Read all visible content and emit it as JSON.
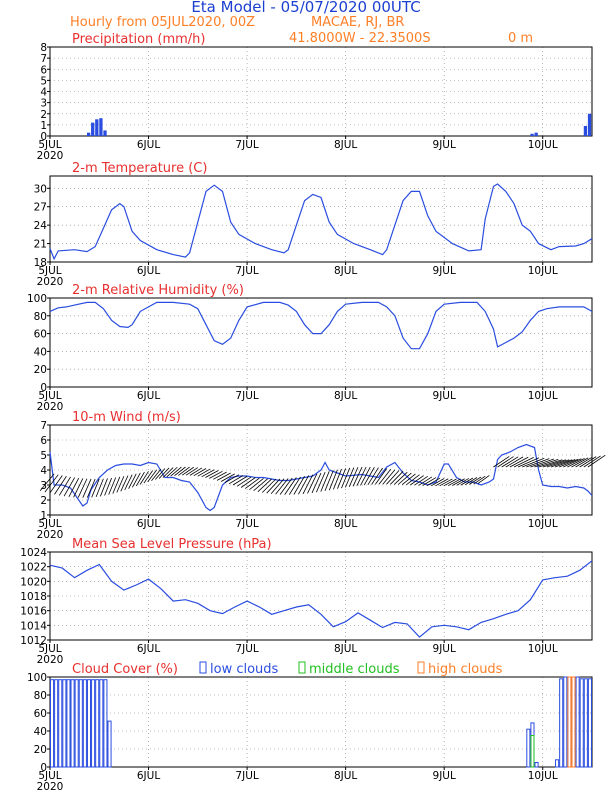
{
  "header": {
    "title": "Eta Model - 05/07/2020 00UTC",
    "subtitle": "Hourly from 05JUL2020, 00Z",
    "location": "MACAE, RJ, BR",
    "coords": "41.8000W - 22.3500S",
    "elevation": "0 m"
  },
  "colors": {
    "title": "#1a3fd1",
    "orange": "#ff7f27",
    "red": "#e83030",
    "blue": "#2a4de0",
    "green": "#22c022",
    "frame": "#000000",
    "grid": "#888888"
  },
  "x_axis": {
    "range": [
      0,
      132
    ],
    "ticks": [
      {
        "hour": 0,
        "label": "5JUL",
        "year": "2020"
      },
      {
        "hour": 24,
        "label": "6JUL"
      },
      {
        "hour": 48,
        "label": "7JUL"
      },
      {
        "hour": 72,
        "label": "8JUL"
      },
      {
        "hour": 96,
        "label": "9JUL"
      },
      {
        "hour": 120,
        "label": "10JUL"
      }
    ]
  },
  "chart_data": [
    {
      "type": "bar",
      "title": "Precipitation (mm/h)",
      "ylim": [
        0,
        8
      ],
      "yticks": [
        0,
        1,
        2,
        3,
        4,
        5,
        6,
        7,
        8
      ],
      "bars": [
        [
          9,
          0.3
        ],
        [
          10,
          1.2
        ],
        [
          11,
          1.5
        ],
        [
          12,
          1.6
        ],
        [
          13,
          0.5
        ],
        [
          117,
          0.2
        ],
        [
          118,
          0.3
        ],
        [
          130,
          0.9
        ],
        [
          131,
          2.0
        ]
      ]
    },
    {
      "type": "line",
      "title": "2-m Temperature (C)",
      "ylim": [
        18,
        32
      ],
      "yticks": [
        18,
        21,
        24,
        27,
        30
      ],
      "points": [
        [
          0,
          20.2
        ],
        [
          1,
          18.5
        ],
        [
          2,
          19.8
        ],
        [
          6,
          20.0
        ],
        [
          9,
          19.7
        ],
        [
          11,
          20.5
        ],
        [
          13,
          23.5
        ],
        [
          15,
          26.5
        ],
        [
          17,
          27.5
        ],
        [
          18,
          27.0
        ],
        [
          20,
          23.0
        ],
        [
          22,
          21.5
        ],
        [
          26,
          20.0
        ],
        [
          30,
          19.2
        ],
        [
          33,
          18.8
        ],
        [
          34,
          19.5
        ],
        [
          36,
          24.5
        ],
        [
          38,
          29.5
        ],
        [
          40,
          30.5
        ],
        [
          42,
          29.5
        ],
        [
          44,
          24.5
        ],
        [
          46,
          22.5
        ],
        [
          50,
          21.0
        ],
        [
          54,
          20.0
        ],
        [
          57,
          19.5
        ],
        [
          58,
          20.0
        ],
        [
          60,
          24.0
        ],
        [
          62,
          28.0
        ],
        [
          64,
          29.0
        ],
        [
          66,
          28.5
        ],
        [
          68,
          24.5
        ],
        [
          70,
          22.5
        ],
        [
          74,
          21.0
        ],
        [
          78,
          20.0
        ],
        [
          81,
          19.2
        ],
        [
          82,
          20.0
        ],
        [
          84,
          24.0
        ],
        [
          86,
          28.0
        ],
        [
          88,
          29.5
        ],
        [
          90,
          29.5
        ],
        [
          92,
          25.5
        ],
        [
          94,
          23.0
        ],
        [
          98,
          21.0
        ],
        [
          102,
          19.8
        ],
        [
          105,
          20.0
        ],
        [
          106,
          25.0
        ],
        [
          108,
          30.3
        ],
        [
          109,
          30.7
        ],
        [
          111,
          29.5
        ],
        [
          113,
          27.5
        ],
        [
          115,
          24.0
        ],
        [
          117,
          23.0
        ],
        [
          119,
          21.0
        ],
        [
          122,
          20.0
        ],
        [
          124,
          20.5
        ],
        [
          128,
          20.6
        ],
        [
          130,
          21.0
        ],
        [
          132,
          21.8
        ]
      ]
    },
    {
      "type": "line",
      "title": "2-m Relative Humidity (%)",
      "ylim": [
        0,
        100
      ],
      "yticks": [
        0,
        20,
        40,
        60,
        80,
        100
      ],
      "points": [
        [
          0,
          85
        ],
        [
          2,
          89
        ],
        [
          4,
          90
        ],
        [
          6,
          92
        ],
        [
          9,
          95
        ],
        [
          11,
          95
        ],
        [
          13,
          88
        ],
        [
          15,
          75
        ],
        [
          17,
          68
        ],
        [
          19,
          67
        ],
        [
          20,
          70
        ],
        [
          22,
          85
        ],
        [
          26,
          95
        ],
        [
          30,
          95
        ],
        [
          34,
          93
        ],
        [
          36,
          88
        ],
        [
          38,
          70
        ],
        [
          40,
          52
        ],
        [
          42,
          48
        ],
        [
          44,
          55
        ],
        [
          46,
          75
        ],
        [
          48,
          90
        ],
        [
          52,
          95
        ],
        [
          56,
          95
        ],
        [
          58,
          92
        ],
        [
          60,
          85
        ],
        [
          62,
          70
        ],
        [
          64,
          60
        ],
        [
          66,
          60
        ],
        [
          68,
          70
        ],
        [
          70,
          85
        ],
        [
          72,
          93
        ],
        [
          76,
          95
        ],
        [
          80,
          95
        ],
        [
          82,
          90
        ],
        [
          84,
          80
        ],
        [
          86,
          55
        ],
        [
          88,
          43
        ],
        [
          90,
          43
        ],
        [
          92,
          60
        ],
        [
          94,
          85
        ],
        [
          96,
          93
        ],
        [
          100,
          95
        ],
        [
          104,
          95
        ],
        [
          106,
          85
        ],
        [
          108,
          65
        ],
        [
          109,
          45
        ],
        [
          111,
          50
        ],
        [
          113,
          55
        ],
        [
          115,
          62
        ],
        [
          117,
          75
        ],
        [
          119,
          85
        ],
        [
          121,
          88
        ],
        [
          124,
          90
        ],
        [
          128,
          90
        ],
        [
          130,
          90
        ],
        [
          132,
          85
        ]
      ]
    },
    {
      "type": "line",
      "title": "10-m Wind (m/s)",
      "ylim": [
        1,
        7
      ],
      "yticks": [
        1,
        2,
        3,
        4,
        5,
        6,
        7
      ],
      "points": [
        [
          0,
          5.2
        ],
        [
          1,
          3.0
        ],
        [
          3,
          3.0
        ],
        [
          5,
          2.8
        ],
        [
          7,
          2.0
        ],
        [
          8,
          1.6
        ],
        [
          9,
          1.8
        ],
        [
          10,
          2.7
        ],
        [
          12,
          3.5
        ],
        [
          14,
          4.0
        ],
        [
          16,
          4.3
        ],
        [
          18,
          4.4
        ],
        [
          20,
          4.4
        ],
        [
          22,
          4.3
        ],
        [
          24,
          4.5
        ],
        [
          26,
          4.4
        ],
        [
          28,
          3.5
        ],
        [
          30,
          3.5
        ],
        [
          32,
          3.3
        ],
        [
          34,
          3.2
        ],
        [
          36,
          2.5
        ],
        [
          38,
          1.5
        ],
        [
          39,
          1.3
        ],
        [
          40,
          1.5
        ],
        [
          42,
          3.0
        ],
        [
          44,
          3.5
        ],
        [
          46,
          3.6
        ],
        [
          48,
          3.6
        ],
        [
          50,
          3.5
        ],
        [
          52,
          3.5
        ],
        [
          54,
          3.4
        ],
        [
          56,
          3.3
        ],
        [
          58,
          3.3
        ],
        [
          60,
          3.4
        ],
        [
          62,
          3.5
        ],
        [
          64,
          3.6
        ],
        [
          66,
          4.0
        ],
        [
          67,
          4.5
        ],
        [
          68,
          4.0
        ],
        [
          70,
          3.8
        ],
        [
          72,
          3.6
        ],
        [
          76,
          3.7
        ],
        [
          78,
          3.6
        ],
        [
          80,
          3.5
        ],
        [
          82,
          4.2
        ],
        [
          84,
          4.5
        ],
        [
          86,
          3.8
        ],
        [
          88,
          3.3
        ],
        [
          90,
          3.2
        ],
        [
          92,
          3.0
        ],
        [
          94,
          3.2
        ],
        [
          96,
          4.4
        ],
        [
          97,
          4.4
        ],
        [
          99,
          3.5
        ],
        [
          101,
          3.2
        ],
        [
          103,
          3.2
        ],
        [
          105,
          3.0
        ],
        [
          107,
          3.2
        ],
        [
          108,
          3.4
        ],
        [
          109,
          4.7
        ],
        [
          110,
          5.0
        ],
        [
          112,
          5.2
        ],
        [
          114,
          5.5
        ],
        [
          116,
          5.7
        ],
        [
          118,
          5.5
        ],
        [
          119,
          4.0
        ],
        [
          120,
          3.0
        ],
        [
          122,
          2.9
        ],
        [
          124,
          2.9
        ],
        [
          126,
          2.8
        ],
        [
          128,
          2.9
        ],
        [
          130,
          2.8
        ],
        [
          131,
          2.6
        ],
        [
          132,
          2.3
        ]
      ]
    },
    {
      "type": "line",
      "title": "Mean Sea Level Pressure (hPa)",
      "ylim": [
        1012,
        1024
      ],
      "yticks": [
        1012,
        1014,
        1016,
        1018,
        1020,
        1022,
        1024
      ],
      "points": [
        [
          0,
          1022.2
        ],
        [
          3,
          1021.8
        ],
        [
          6,
          1020.5
        ],
        [
          9,
          1021.5
        ],
        [
          12,
          1022.3
        ],
        [
          15,
          1020.0
        ],
        [
          18,
          1018.8
        ],
        [
          21,
          1019.5
        ],
        [
          24,
          1020.3
        ],
        [
          27,
          1019.0
        ],
        [
          30,
          1017.3
        ],
        [
          33,
          1017.5
        ],
        [
          36,
          1017.0
        ],
        [
          39,
          1016.0
        ],
        [
          42,
          1015.6
        ],
        [
          45,
          1016.5
        ],
        [
          48,
          1017.3
        ],
        [
          51,
          1016.5
        ],
        [
          54,
          1015.5
        ],
        [
          57,
          1016.0
        ],
        [
          60,
          1016.5
        ],
        [
          63,
          1016.8
        ],
        [
          66,
          1015.5
        ],
        [
          69,
          1013.8
        ],
        [
          72,
          1014.5
        ],
        [
          75,
          1015.7
        ],
        [
          78,
          1014.7
        ],
        [
          81,
          1013.7
        ],
        [
          84,
          1014.4
        ],
        [
          87,
          1014.2
        ],
        [
          90,
          1012.4
        ],
        [
          93,
          1013.8
        ],
        [
          96,
          1014.0
        ],
        [
          99,
          1013.8
        ],
        [
          102,
          1013.4
        ],
        [
          105,
          1014.4
        ],
        [
          108,
          1014.9
        ],
        [
          111,
          1015.5
        ],
        [
          114,
          1016.0
        ],
        [
          117,
          1017.5
        ],
        [
          120,
          1020.2
        ],
        [
          123,
          1020.5
        ],
        [
          126,
          1020.7
        ],
        [
          129,
          1021.5
        ],
        [
          132,
          1022.8
        ]
      ]
    },
    {
      "type": "bar",
      "title": "Cloud Cover (%)",
      "legend": [
        "low clouds",
        "middle clouds",
        "high clouds"
      ],
      "ylim": [
        0,
        100
      ],
      "yticks": [
        0,
        20,
        40,
        60,
        80,
        100
      ],
      "series": [
        {
          "name": "low clouds",
          "color": "#2a4de0",
          "bars": [
            [
              0,
              97
            ],
            [
              1,
              97
            ],
            [
              2,
              97
            ],
            [
              3,
              97
            ],
            [
              4,
              97
            ],
            [
              5,
              97
            ],
            [
              6,
              97
            ],
            [
              7,
              97
            ],
            [
              8,
              97
            ],
            [
              9,
              97
            ],
            [
              10,
              97
            ],
            [
              11,
              97
            ],
            [
              12,
              97
            ],
            [
              13,
              97
            ],
            [
              14,
              51
            ],
            [
              116,
              42
            ],
            [
              117,
              49
            ],
            [
              118,
              5
            ],
            [
              123,
              8
            ],
            [
              124,
              98
            ],
            [
              125,
              100
            ],
            [
              126,
              100
            ],
            [
              127,
              100
            ],
            [
              128,
              100
            ],
            [
              129,
              98
            ],
            [
              130,
              98
            ],
            [
              131,
              98
            ]
          ]
        },
        {
          "name": "middle clouds",
          "color": "#22c022",
          "bars": [
            [
              117,
              35
            ]
          ]
        },
        {
          "name": "high clouds",
          "color": "#ff7f27",
          "bars": [
            [
              126,
              100
            ],
            [
              127,
              100
            ]
          ]
        }
      ]
    }
  ]
}
